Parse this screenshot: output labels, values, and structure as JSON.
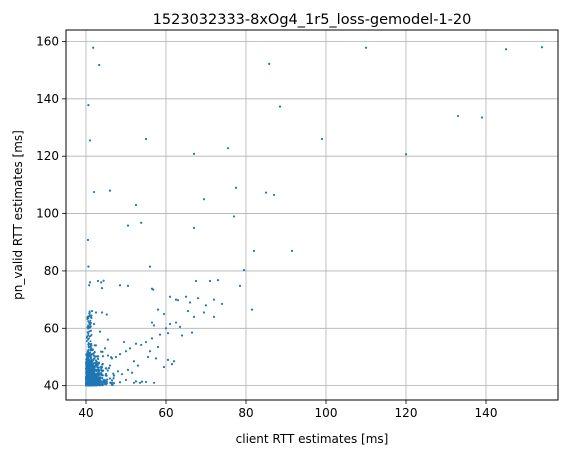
{
  "chart_data": {
    "type": "scatter",
    "title": "1523032333-8xOg4_1r5_loss-gemodel-1-20",
    "xlabel": "client RTT estimates [ms]",
    "ylabel": "pn_valid RTT estimates [ms]",
    "xlim": [
      35,
      158
    ],
    "ylim": [
      35,
      164
    ],
    "xticks": [
      40,
      60,
      80,
      100,
      120,
      140
    ],
    "yticks": [
      40,
      60,
      80,
      100,
      120,
      140,
      160
    ],
    "grid": true,
    "marker_color": "#1f77b4",
    "points": [
      [
        41.8,
        157.8
      ],
      [
        43.3,
        151.8
      ],
      [
        85.8,
        152.2
      ],
      [
        110.0,
        157.8
      ],
      [
        145.0,
        157.3
      ],
      [
        154.0,
        158.0
      ],
      [
        40.6,
        137.8
      ],
      [
        88.5,
        137.3
      ],
      [
        133.0,
        134.0
      ],
      [
        139.0,
        133.5
      ],
      [
        41.0,
        125.5
      ],
      [
        55.0,
        126.0
      ],
      [
        99.0,
        126.0
      ],
      [
        67.0,
        120.8
      ],
      [
        75.5,
        122.8
      ],
      [
        120.0,
        120.7
      ],
      [
        77.5,
        109.0
      ],
      [
        42.0,
        107.5
      ],
      [
        46.0,
        108.0
      ],
      [
        85.0,
        107.3
      ],
      [
        87.0,
        106.5
      ],
      [
        69.5,
        105.0
      ],
      [
        52.5,
        103.0
      ],
      [
        77.0,
        99.0
      ],
      [
        50.5,
        95.8
      ],
      [
        53.8,
        96.8
      ],
      [
        67.0,
        95.0
      ],
      [
        40.5,
        90.8
      ],
      [
        82.0,
        87.0
      ],
      [
        91.5,
        87.0
      ],
      [
        40.6,
        81.5
      ],
      [
        56.0,
        81.5
      ],
      [
        79.5,
        80.3
      ],
      [
        67.5,
        76.5
      ],
      [
        71.0,
        76.5
      ],
      [
        73.0,
        76.8
      ],
      [
        78.5,
        74.8
      ],
      [
        40.8,
        75.0
      ],
      [
        41.0,
        76.0
      ],
      [
        43.0,
        76.5
      ],
      [
        43.8,
        76.0
      ],
      [
        44.4,
        76.6
      ],
      [
        44.0,
        74.0
      ],
      [
        48.5,
        75.0
      ],
      [
        50.5,
        74.8
      ],
      [
        56.5,
        73.8
      ],
      [
        56.8,
        73.5
      ],
      [
        61.0,
        71.0
      ],
      [
        62.5,
        70.0
      ],
      [
        63.0,
        69.8
      ],
      [
        65.0,
        71.0
      ],
      [
        66.0,
        69.0
      ],
      [
        68.0,
        70.5
      ],
      [
        70.0,
        68.0
      ],
      [
        72.0,
        70.0
      ],
      [
        74.0,
        68.5
      ],
      [
        58.0,
        66.5
      ],
      [
        59.5,
        65.0
      ],
      [
        65.5,
        66.0
      ],
      [
        67.0,
        64.0
      ],
      [
        69.5,
        65.5
      ],
      [
        72.0,
        64.0
      ],
      [
        81.5,
        66.5
      ],
      [
        41.5,
        66.0
      ],
      [
        42.5,
        65.5
      ],
      [
        44.0,
        65.5
      ],
      [
        45.2,
        64.8
      ],
      [
        41.0,
        62.0
      ],
      [
        42.0,
        61.5
      ],
      [
        56.5,
        62.0
      ],
      [
        57.0,
        61.0
      ],
      [
        60.0,
        60.0
      ],
      [
        61.0,
        61.5
      ],
      [
        62.5,
        62.0
      ],
      [
        63.5,
        60.5
      ],
      [
        66.5,
        58.5
      ],
      [
        58.5,
        57.8
      ],
      [
        60.5,
        58.3
      ],
      [
        64.0,
        57.5
      ],
      [
        56.5,
        56.5
      ],
      [
        55.0,
        55.2
      ],
      [
        53.8,
        54.2
      ],
      [
        52.5,
        54.6
      ],
      [
        51.0,
        53.0
      ],
      [
        50.0,
        52.0
      ],
      [
        49.5,
        55.2
      ],
      [
        48.5,
        51.0
      ],
      [
        47.5,
        50.0
      ],
      [
        46.5,
        49.5
      ],
      [
        45.5,
        50.5
      ],
      [
        46.0,
        47.0
      ],
      [
        45.0,
        46.0
      ],
      [
        55.5,
        50.0
      ],
      [
        57.5,
        49.5
      ],
      [
        56.0,
        52.0
      ],
      [
        58.0,
        53.5
      ],
      [
        60.5,
        49.0
      ],
      [
        62.0,
        48.5
      ],
      [
        61.5,
        47.5
      ],
      [
        59.5,
        46.5
      ],
      [
        53.0,
        47.0
      ],
      [
        52.0,
        48.5
      ],
      [
        51.5,
        44.5
      ],
      [
        50.5,
        45.5
      ],
      [
        49.0,
        44.0
      ],
      [
        48.0,
        45.0
      ],
      [
        47.0,
        43.5
      ],
      [
        46.0,
        42.5
      ],
      [
        50.0,
        42.0
      ],
      [
        52.5,
        41.5
      ],
      [
        55.0,
        41.3
      ],
      [
        57.0,
        41.0
      ],
      [
        44.5,
        41.0
      ],
      [
        43.5,
        41.2
      ],
      [
        46.5,
        41.0
      ],
      [
        48.5,
        41.2
      ],
      [
        52.0,
        41.0
      ],
      [
        53.5,
        41.0
      ],
      [
        54.0,
        41.4
      ]
    ]
  }
}
